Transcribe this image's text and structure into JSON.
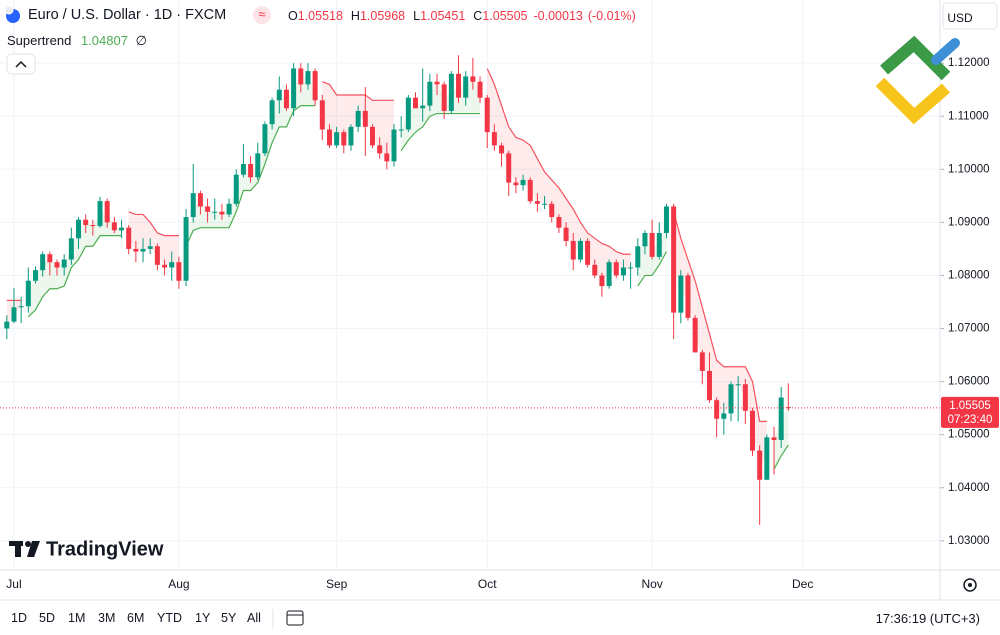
{
  "header": {
    "title": "Euro / U.S. Dollar · 1D · FXCM",
    "ohlc_labels": [
      "O",
      "H",
      "L",
      "C"
    ],
    "change": "-0.00013",
    "change_pct": "(-0.01%)",
    "currency": "USD",
    "countdown": "07:23:40",
    "brand": "TradingView"
  },
  "toolbar": {
    "ranges": [
      "1D",
      "5D",
      "1M",
      "3M",
      "6M",
      "YTD",
      "1Y",
      "5Y",
      "All"
    ],
    "clock": "17:36:19 (UTC+3)"
  },
  "chart_data": {
    "type": "candlestick",
    "up_color": "#089981",
    "down_color": "#f23645",
    "grid": true,
    "xlim": [
      -0.95,
      130.15
    ],
    "xticks": [
      {
        "value": 1,
        "label": "Jul"
      },
      {
        "value": 24,
        "label": "Aug"
      },
      {
        "value": 46,
        "label": "Sep"
      },
      {
        "value": 67,
        "label": "Oct"
      },
      {
        "value": 90,
        "label": "Nov"
      },
      {
        "value": 111,
        "label": "Dec"
      }
    ],
    "ylim": [
      1.0245,
      1.1319
    ],
    "yticks": [
      {
        "value": 1.03,
        "label": "1.03000"
      },
      {
        "value": 1.04,
        "label": "1.04000"
      },
      {
        "value": 1.05,
        "label": "1.05000"
      },
      {
        "value": 1.06,
        "label": "1.06000"
      },
      {
        "value": 1.07,
        "label": "1.07000"
      },
      {
        "value": 1.08,
        "label": "1.08000"
      },
      {
        "value": 1.09,
        "label": "1.09000"
      },
      {
        "value": 1.1,
        "label": "1.10000"
      },
      {
        "value": 1.11,
        "label": "1.11000"
      },
      {
        "value": 1.12,
        "label": "1.12000"
      }
    ],
    "open": [
      1.07,
      1.0713,
      1.074,
      1.0742,
      1.079,
      1.081,
      1.084,
      1.0825,
      1.0815,
      1.083,
      1.087,
      1.0905,
      1.0895,
      1.0893,
      1.094,
      1.09,
      1.0885,
      1.089,
      1.085,
      1.0845,
      1.085,
      1.0855,
      1.082,
      1.0815,
      1.0825,
      1.079,
      1.091,
      1.0955,
      1.093,
      1.092,
      1.092,
      1.0915,
      1.0935,
      1.099,
      1.101,
      1.0985,
      1.103,
      1.1085,
      1.113,
      1.115,
      1.1115,
      1.119,
      1.116,
      1.1185,
      1.113,
      1.1075,
      1.1045,
      1.107,
      1.1045,
      1.108,
      1.111,
      1.108,
      1.1045,
      1.103,
      1.1015,
      1.1075,
      1.1075,
      1.1135,
      1.1115,
      1.112,
      1.1165,
      1.116,
      1.111,
      1.118,
      1.1135,
      1.1175,
      1.1165,
      1.1135,
      1.107,
      1.1045,
      1.103,
      1.0975,
      1.097,
      1.098,
      1.094,
      1.0935,
      1.0935,
      1.091,
      1.089,
      1.0865,
      1.083,
      1.0865,
      1.082,
      1.08,
      1.078,
      1.0825,
      1.08,
      1.0815,
      1.0815,
      1.0855,
      1.088,
      1.0835,
      1.088,
      1.093,
      1.073,
      1.08,
      1.072,
      1.0655,
      1.062,
      1.0565,
      1.053,
      1.054,
      1.0595,
      1.0595,
      1.0545,
      1.047,
      1.0415,
      1.0495,
      1.049,
      1.05518
    ],
    "high": [
      1.0725,
      1.0776,
      1.076,
      1.0815,
      1.0817,
      1.0845,
      1.0845,
      1.083,
      1.084,
      1.089,
      1.091,
      1.0915,
      1.0905,
      1.0948,
      1.0945,
      1.091,
      1.0905,
      1.0895,
      1.0865,
      1.087,
      1.087,
      1.086,
      1.083,
      1.0845,
      1.0835,
      1.0925,
      1.101,
      1.096,
      1.0945,
      1.0945,
      1.0935,
      1.0945,
      1.1,
      1.1048,
      1.1025,
      1.105,
      1.109,
      1.1135,
      1.1175,
      1.116,
      1.12,
      1.12,
      1.12,
      1.119,
      1.114,
      1.1085,
      1.108,
      1.1075,
      1.1085,
      1.112,
      1.1155,
      1.1085,
      1.106,
      1.105,
      1.1085,
      1.11,
      1.114,
      1.1145,
      1.119,
      1.118,
      1.118,
      1.1165,
      1.1185,
      1.1215,
      1.1185,
      1.121,
      1.1175,
      1.114,
      1.1085,
      1.105,
      1.1035,
      1.0985,
      1.099,
      1.0985,
      1.0955,
      1.095,
      1.094,
      1.0915,
      1.09,
      1.088,
      1.087,
      1.087,
      1.083,
      1.0805,
      1.083,
      1.083,
      1.083,
      1.0825,
      1.087,
      1.0885,
      1.0905,
      1.09,
      1.0935,
      1.0935,
      1.081,
      1.0805,
      1.0725,
      1.066,
      1.0655,
      1.057,
      1.056,
      1.06,
      1.061,
      1.0605,
      1.055,
      1.048,
      1.05,
      1.0515,
      1.059,
      1.05968
    ],
    "low": [
      1.068,
      1.071,
      1.071,
      1.073,
      1.0785,
      1.0798,
      1.08,
      1.08,
      1.08,
      1.082,
      1.085,
      1.088,
      1.0875,
      1.089,
      1.089,
      1.088,
      1.087,
      1.084,
      1.0825,
      1.0825,
      1.084,
      1.081,
      1.08,
      1.079,
      1.0775,
      1.078,
      1.09,
      1.0915,
      1.09,
      1.0905,
      1.0905,
      1.091,
      1.093,
      1.0985,
      1.0975,
      1.098,
      1.1025,
      1.1075,
      1.1105,
      1.111,
      1.11,
      1.1145,
      1.115,
      1.112,
      1.1055,
      1.104,
      1.104,
      1.103,
      1.1035,
      1.107,
      1.1025,
      1.104,
      1.102,
      1.1,
      1.1005,
      1.106,
      1.107,
      1.1115,
      1.109,
      1.111,
      1.114,
      1.1095,
      1.1105,
      1.1125,
      1.112,
      1.115,
      1.1125,
      1.104,
      1.1035,
      1.1005,
      1.095,
      1.0955,
      1.096,
      1.0935,
      1.092,
      1.0925,
      1.09,
      1.088,
      1.0855,
      1.081,
      1.0825,
      1.0815,
      1.0795,
      1.076,
      1.0775,
      1.0795,
      1.079,
      1.0775,
      1.08,
      1.084,
      1.083,
      1.083,
      1.087,
      1.068,
      1.071,
      1.0715,
      1.0655,
      1.0595,
      1.056,
      1.0495,
      1.05,
      1.0525,
      1.0525,
      1.052,
      1.046,
      1.033,
      1.0415,
      1.0425,
      1.0475,
      1.05451
    ],
    "close": [
      1.0713,
      1.074,
      1.0742,
      1.079,
      1.081,
      1.084,
      1.0825,
      1.0815,
      1.083,
      1.087,
      1.0905,
      1.0895,
      1.0893,
      1.094,
      1.09,
      1.0885,
      1.089,
      1.085,
      1.0845,
      1.085,
      1.0855,
      1.082,
      1.0815,
      1.0825,
      1.079,
      1.091,
      1.0955,
      1.093,
      1.092,
      1.092,
      1.0915,
      1.0935,
      1.099,
      1.101,
      1.0985,
      1.103,
      1.1085,
      1.113,
      1.115,
      1.1115,
      1.119,
      1.116,
      1.1185,
      1.113,
      1.1075,
      1.1045,
      1.107,
      1.1045,
      1.108,
      1.111,
      1.108,
      1.1045,
      1.103,
      1.1015,
      1.1075,
      1.1075,
      1.1135,
      1.1115,
      1.112,
      1.1165,
      1.116,
      1.111,
      1.118,
      1.1135,
      1.1175,
      1.1165,
      1.1135,
      1.107,
      1.1045,
      1.103,
      1.0975,
      1.097,
      1.098,
      1.094,
      1.0935,
      1.0935,
      1.091,
      1.089,
      1.0865,
      1.083,
      1.0865,
      1.082,
      1.08,
      1.078,
      1.0825,
      1.08,
      1.0815,
      1.0815,
      1.0855,
      1.088,
      1.0835,
      1.088,
      1.093,
      1.073,
      1.08,
      1.072,
      1.0655,
      1.062,
      1.0565,
      1.053,
      1.054,
      1.0595,
      1.0595,
      1.0545,
      1.047,
      1.0415,
      1.0495,
      1.049,
      1.057,
      1.05505
    ],
    "supertrend": {
      "name": "Supertrend",
      "up_color": "#4caf50",
      "down_color": "#f7525f",
      "up_values": [
        null,
        null,
        null,
        1.0722,
        1.0735,
        1.076,
        1.0775,
        1.0775,
        1.078,
        1.0815,
        1.083,
        1.0855,
        1.0855,
        1.0875,
        1.0875,
        1.0875,
        1.0875,
        null,
        null,
        null,
        null,
        null,
        null,
        null,
        null,
        1.0855,
        1.0885,
        1.089,
        1.089,
        1.089,
        1.089,
        1.089,
        1.092,
        1.096,
        1.096,
        1.0975,
        1.101,
        1.105,
        1.108,
        1.108,
        1.111,
        1.112,
        1.112,
        1.112,
        null,
        null,
        null,
        null,
        null,
        null,
        null,
        null,
        null,
        null,
        null,
        1.1035,
        1.1055,
        1.107,
        1.108,
        1.11,
        1.1105,
        1.1105,
        1.1105,
        1.1105,
        1.1105,
        1.1105,
        1.1105,
        null,
        null,
        null,
        null,
        null,
        null,
        null,
        null,
        null,
        null,
        null,
        null,
        null,
        null,
        null,
        null,
        null,
        null,
        null,
        null,
        null,
        1.078,
        1.08,
        1.08,
        1.082,
        1.0845,
        null,
        null,
        null,
        null,
        null,
        null,
        null,
        null,
        null,
        null,
        null,
        null,
        null,
        null,
        1.0435,
        1.046,
        1.04807
      ],
      "down_values": [
        1.0753,
        1.0753,
        1.0753,
        null,
        null,
        null,
        null,
        null,
        null,
        null,
        null,
        null,
        null,
        null,
        null,
        null,
        null,
        1.092,
        1.0915,
        1.0915,
        1.09,
        1.088,
        1.0875,
        1.0875,
        1.0875,
        null,
        null,
        null,
        null,
        null,
        null,
        null,
        null,
        null,
        null,
        null,
        null,
        null,
        null,
        null,
        null,
        null,
        null,
        null,
        1.1165,
        1.116,
        1.114,
        1.114,
        1.114,
        1.114,
        1.114,
        1.113,
        1.113,
        1.113,
        1.113,
        null,
        null,
        null,
        null,
        null,
        null,
        null,
        null,
        null,
        null,
        null,
        null,
        1.119,
        1.116,
        1.112,
        1.108,
        1.106,
        1.1055,
        1.1045,
        1.102,
        1.0995,
        1.098,
        1.0965,
        1.0945,
        1.0925,
        1.09,
        1.088,
        1.087,
        1.086,
        1.0855,
        1.0845,
        1.084,
        1.084,
        null,
        null,
        null,
        null,
        null,
        1.092,
        1.087,
        1.083,
        1.079,
        1.074,
        1.069,
        1.064,
        1.0628,
        1.0628,
        1.0628,
        1.0628,
        1.06,
        1.0525,
        1.0525,
        null,
        null,
        null
      ]
    }
  }
}
